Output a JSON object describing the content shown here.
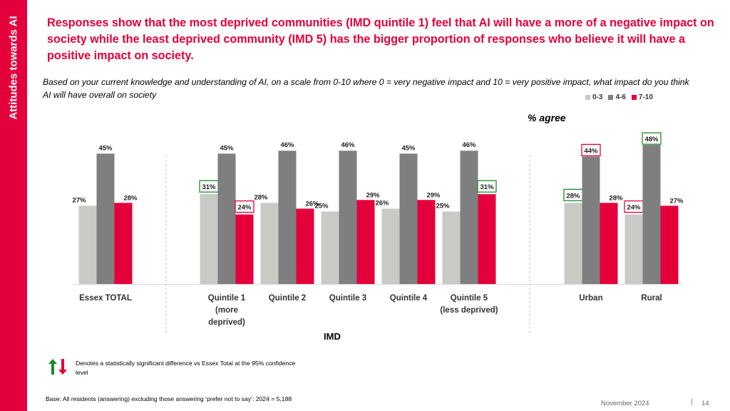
{
  "sidebar": {
    "label": "Attitudes towards AI"
  },
  "headline": "Responses show that the most deprived communities (IMD quintile 1) feel that AI will have a more of a negative impact on society while the least deprived community (IMD 5) has the bigger proportion of responses who believe it will have a positive impact on society.",
  "question": "Based on your current knowledge and understanding of AI, on a scale from 0-10 where 0 = very negative impact and 10 = very positive impact, what impact do you think AI will have overall on society",
  "chart_title": "% agree",
  "imd_label": "IMD",
  "footnote": {
    "significance": "Denotes a statistically significant difference vs Essex Total at the 95% confidence level",
    "base": "Base: All residents (answering) excluding those answering ‘prefer not to say’: 2024 = 5,188"
  },
  "footer": {
    "date": "November 2024",
    "divider": "|",
    "page": "14"
  },
  "colors": {
    "brand": "#e4003b",
    "s1": "#c9c9c6",
    "s2": "#7f7f7f",
    "s3": "#e4003b",
    "sig_up": "#1e8a2c",
    "sig_down": "#e4003b"
  },
  "chart_data": {
    "type": "bar",
    "title": "% agree",
    "xlabel": "IMD",
    "ylabel": "",
    "ylim": [
      0,
      50
    ],
    "legend": "top-right",
    "categories": [
      [
        "Essex TOTAL"
      ],
      [
        "Quintile 1",
        "(more",
        "deprived)"
      ],
      [
        "Quintile 2"
      ],
      [
        "Quintile 3"
      ],
      [
        "Quintile 4"
      ],
      [
        "Quintile 5",
        "(less deprived)"
      ],
      [
        "Urban"
      ],
      [
        "Rural"
      ]
    ],
    "series": [
      {
        "name": "0-3",
        "values": [
          27,
          31,
          28,
          25,
          26,
          25,
          28,
          24
        ],
        "labels": [
          "27%",
          "31%",
          "28%",
          "25%",
          "26%",
          "25%",
          "28%",
          "24%"
        ]
      },
      {
        "name": "4-6",
        "values": [
          45,
          45,
          46,
          46,
          45,
          46,
          44,
          48
        ],
        "labels": [
          "45%",
          "45%",
          "46%",
          "46%",
          "45%",
          "46%",
          "44%",
          "48%"
        ]
      },
      {
        "name": "7-10",
        "values": [
          28,
          24,
          26,
          29,
          29,
          31,
          28,
          27
        ],
        "labels": [
          "28%",
          "24%",
          "26%",
          "29%",
          "29%",
          "31%",
          "28%",
          "27%"
        ]
      }
    ],
    "significance": [
      {
        "category": 1,
        "series": 0,
        "direction": "higher"
      },
      {
        "category": 1,
        "series": 2,
        "direction": "lower"
      },
      {
        "category": 5,
        "series": 2,
        "direction": "higher"
      },
      {
        "category": 6,
        "series": 0,
        "direction": "higher"
      },
      {
        "category": 6,
        "series": 1,
        "direction": "lower"
      },
      {
        "category": 7,
        "series": 1,
        "direction": "higher"
      },
      {
        "category": 7,
        "series": 0,
        "direction": "lower"
      }
    ]
  }
}
